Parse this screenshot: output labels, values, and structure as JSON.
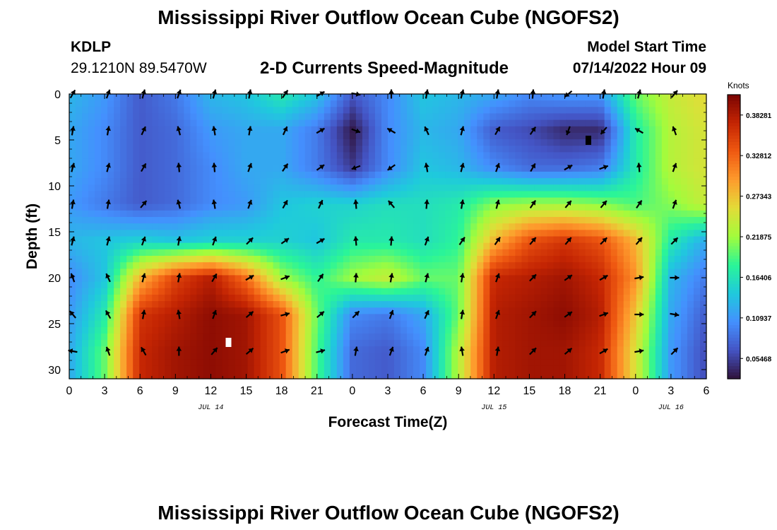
{
  "header": {
    "title": "Mississippi River Outflow Ocean Cube (NGOFS2)",
    "station_id": "KDLP",
    "station_coords": "29.1210N  89.5470W",
    "subtitle": "2-D Currents Speed-Magnitude",
    "model_start_label": "Model Start Time",
    "model_start_value": "07/14/2022 Hour 09"
  },
  "footer": {
    "title": "Mississippi River Outflow Ocean Cube (NGOFS2)"
  },
  "colors": {
    "colormap": [
      "#30123b",
      "#4454c4",
      "#4490fe",
      "#1fc9dd",
      "#2af598",
      "#a2fc3c",
      "#e2dc38",
      "#fe9b2d",
      "#ef5911",
      "#c42503",
      "#7a0403"
    ]
  },
  "chart_data": {
    "type": "heatmap",
    "xlabel": "Forecast Time(Z)",
    "ylabel": "Depth (ft)",
    "xlim": [
      0,
      54
    ],
    "ylim": [
      31,
      0
    ],
    "x_ticks": [
      0,
      3,
      6,
      9,
      12,
      15,
      18,
      21,
      24,
      27,
      30,
      33,
      36,
      39,
      42,
      45,
      48,
      51,
      54
    ],
    "x_tick_labels": [
      "0",
      "3",
      "6",
      "9",
      "12",
      "15",
      "18",
      "21",
      "0",
      "3",
      "6",
      "9",
      "12",
      "15",
      "18",
      "21",
      "0",
      "3",
      "6"
    ],
    "y_ticks": [
      0,
      5,
      10,
      15,
      20,
      25,
      30
    ],
    "y_tick_labels": [
      "0",
      "5",
      "10",
      "15",
      "20",
      "25",
      "30"
    ],
    "date_labels": [
      {
        "x": 12,
        "label": "JUL 14"
      },
      {
        "x": 36,
        "label": "JUL 15"
      },
      {
        "x": 51,
        "label": "JUL 16"
      }
    ],
    "colorbar": {
      "title": "Knots",
      "range": [
        0.0273,
        0.4102
      ],
      "ticks": [
        0.05468,
        0.10937,
        0.16406,
        0.21875,
        0.27343,
        0.32812,
        0.38281
      ],
      "tick_labels": [
        "0.05468",
        "0.10937",
        "0.16406",
        "0.21875",
        "0.27343",
        "0.32812",
        "0.38281"
      ]
    },
    "depths": [
      0,
      4,
      8,
      12,
      16,
      20,
      24,
      28
    ],
    "times": [
      0,
      3,
      6,
      9,
      12,
      15,
      18,
      21,
      24,
      27,
      30,
      33,
      36,
      39,
      42,
      45,
      48,
      51,
      54
    ],
    "speed": [
      [
        0.13,
        0.11,
        0.07,
        0.09,
        0.13,
        0.14,
        0.17,
        0.14,
        0.07,
        0.1,
        0.14,
        0.13,
        0.12,
        0.1,
        0.11,
        0.11,
        0.2,
        0.24,
        0.26
      ],
      [
        0.12,
        0.1,
        0.07,
        0.08,
        0.11,
        0.12,
        0.12,
        0.09,
        0.03,
        0.1,
        0.13,
        0.12,
        0.07,
        0.06,
        0.04,
        0.04,
        0.17,
        0.23,
        0.25
      ],
      [
        0.12,
        0.1,
        0.07,
        0.08,
        0.1,
        0.12,
        0.12,
        0.09,
        0.05,
        0.1,
        0.14,
        0.13,
        0.1,
        0.08,
        0.08,
        0.09,
        0.17,
        0.23,
        0.25
      ],
      [
        0.11,
        0.09,
        0.07,
        0.08,
        0.1,
        0.11,
        0.14,
        0.15,
        0.15,
        0.16,
        0.16,
        0.17,
        0.21,
        0.22,
        0.22,
        0.21,
        0.19,
        0.21,
        0.24
      ],
      [
        0.13,
        0.14,
        0.15,
        0.14,
        0.15,
        0.15,
        0.15,
        0.14,
        0.17,
        0.17,
        0.16,
        0.18,
        0.28,
        0.34,
        0.36,
        0.34,
        0.28,
        0.17,
        0.12
      ],
      [
        0.1,
        0.14,
        0.28,
        0.35,
        0.38,
        0.32,
        0.22,
        0.18,
        0.22,
        0.24,
        0.2,
        0.2,
        0.37,
        0.38,
        0.39,
        0.37,
        0.3,
        0.13,
        0.09
      ],
      [
        0.11,
        0.17,
        0.36,
        0.38,
        0.4,
        0.39,
        0.34,
        0.2,
        0.1,
        0.09,
        0.12,
        0.2,
        0.38,
        0.39,
        0.4,
        0.38,
        0.27,
        0.12,
        0.07
      ],
      [
        0.12,
        0.2,
        0.37,
        0.39,
        0.4,
        0.39,
        0.34,
        0.19,
        0.08,
        0.07,
        0.1,
        0.23,
        0.38,
        0.39,
        0.39,
        0.37,
        0.25,
        0.11,
        0.06
      ]
    ],
    "vector_depths": [
      0,
      4,
      8,
      12,
      16,
      20,
      24,
      28
    ],
    "vector_times": [
      0,
      3,
      6,
      9,
      12,
      15,
      18,
      21,
      24,
      27,
      30,
      33,
      36,
      39,
      42,
      45,
      48,
      51
    ],
    "vector_direction_deg": [
      [
        30,
        20,
        15,
        20,
        15,
        10,
        35,
        60,
        100,
        0,
        10,
        15,
        10,
        5,
        230,
        10,
        15,
        40
      ],
      [
        10,
        10,
        25,
        345,
        350,
        10,
        25,
        60,
        110,
        300,
        335,
        15,
        30,
        35,
        200,
        220,
        300,
        340
      ],
      [
        15,
        15,
        30,
        355,
        355,
        20,
        35,
        55,
        250,
        235,
        350,
        15,
        20,
        30,
        60,
        70,
        355,
        20
      ],
      [
        10,
        10,
        40,
        345,
        350,
        20,
        30,
        25,
        355,
        320,
        5,
        10,
        15,
        35,
        40,
        40,
        35,
        20
      ],
      [
        15,
        15,
        20,
        10,
        20,
        45,
        55,
        60,
        355,
        5,
        20,
        35,
        35,
        40,
        40,
        45,
        40,
        45
      ],
      [
        340,
        335,
        15,
        10,
        30,
        60,
        70,
        35,
        5,
        10,
        15,
        10,
        20,
        45,
        55,
        60,
        80,
        90
      ],
      [
        320,
        330,
        10,
        350,
        20,
        50,
        75,
        50,
        45,
        20,
        25,
        10,
        20,
        45,
        55,
        70,
        90,
        100
      ],
      [
        280,
        340,
        330,
        0,
        40,
        50,
        70,
        75,
        10,
        20,
        20,
        350,
        10,
        45,
        50,
        60,
        80,
        45
      ]
    ],
    "markers": [
      {
        "x": 13.5,
        "y": 27,
        "color": "#ffffff"
      },
      {
        "x": 44.0,
        "y": 5,
        "color": "#000000"
      }
    ]
  }
}
